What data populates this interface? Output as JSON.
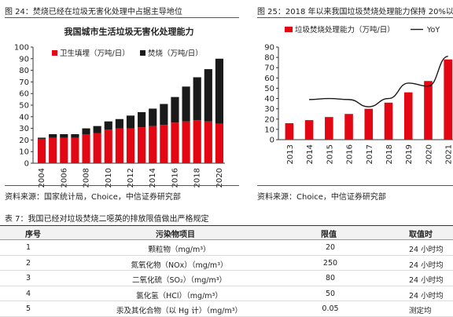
{
  "left_panel": {
    "caption": "图 24：焚烧已经在垃圾无害化处理中占据主导地位",
    "source": "资料来源：国家统计局，Choice，中信证券研究部"
  },
  "right_panel": {
    "caption": "图 25：2018 年以来我国垃圾焚烧处理能力保持 20%以上",
    "source": "资料来源：Choice，中信证券研究部"
  },
  "chart_data": [
    {
      "type": "bar",
      "stacked": true,
      "title": "我国城市生活垃圾无害化处理能力",
      "categories": [
        "2004",
        "2005",
        "2006",
        "2007",
        "2008",
        "2009",
        "2010",
        "2011",
        "2012",
        "2013",
        "2014",
        "2015",
        "2016",
        "2017",
        "2018",
        "2019",
        "2020"
      ],
      "tick_labels": [
        "2004",
        "2006",
        "2008",
        "2010",
        "2012",
        "2014",
        "2016",
        "2018",
        "2020"
      ],
      "series": [
        {
          "name": "卫生填埋（万吨/日）",
          "color": "#e30613",
          "values": [
            21,
            22,
            22,
            22,
            25,
            26,
            29,
            30,
            30,
            31,
            32,
            33,
            35,
            36,
            37,
            36,
            34
          ]
        },
        {
          "name": "焚烧（万吨/日）",
          "color": "#1a1a1a",
          "values": [
            1,
            3,
            3,
            3,
            5,
            6,
            7,
            8,
            11,
            13,
            15,
            18,
            22,
            30,
            37,
            45,
            56
          ]
        }
      ],
      "ylim": [
        0,
        100
      ],
      "yticks": [
        0,
        10,
        20,
        30,
        40,
        50,
        60,
        70,
        80,
        90,
        100
      ],
      "legend": "top-left",
      "grid": false
    },
    {
      "type": "bar+line",
      "categories": [
        "2013",
        "2014",
        "2015",
        "2016",
        "2017",
        "2018",
        "2019",
        "2020",
        "2021"
      ],
      "series": [
        {
          "name": "垃圾焚烧处理能力（万吨/日）",
          "type": "bar",
          "color": "#e30613",
          "values": [
            16,
            19,
            22,
            25,
            30,
            36,
            46,
            57,
            78
          ]
        },
        {
          "name": "YoY",
          "type": "line",
          "color": "#1a1a1a",
          "points": [
            [
              2014,
              39
            ],
            [
              2015,
              40
            ],
            [
              2016,
              39
            ],
            [
              2017,
              32
            ],
            [
              2018,
              40
            ],
            [
              2019,
              55
            ],
            [
              2020,
              52
            ],
            [
              2021,
              81
            ]
          ]
        }
      ],
      "ylim": [
        0,
        90
      ],
      "yticks": [
        0,
        10,
        20,
        30,
        40,
        50,
        60,
        70,
        80,
        90
      ],
      "legend": "top",
      "grid": false
    }
  ],
  "table": {
    "caption": "表 7：我国已经对垃圾焚烧二噁英的排放限值做出严格规定",
    "headers": [
      "序号",
      "污染物项目",
      "限值",
      "取值时"
    ],
    "rows": [
      [
        "1",
        "颗粒物（mg/m³）",
        "20",
        "24 小时均"
      ],
      [
        "2",
        "氮氧化物（NOx）（mg/m³）",
        "250",
        "24 小时均"
      ],
      [
        "3",
        "二氧化硫（SO₂）（mg/m³）",
        "80",
        "24 小时均"
      ],
      [
        "4",
        "氯化氢（HCl）（mg/m³）",
        "50",
        "24 小时均"
      ],
      [
        "5",
        "汞及其化合物（以 Hg 计）（mg/m³）",
        "0.05",
        "测定均"
      ]
    ]
  }
}
